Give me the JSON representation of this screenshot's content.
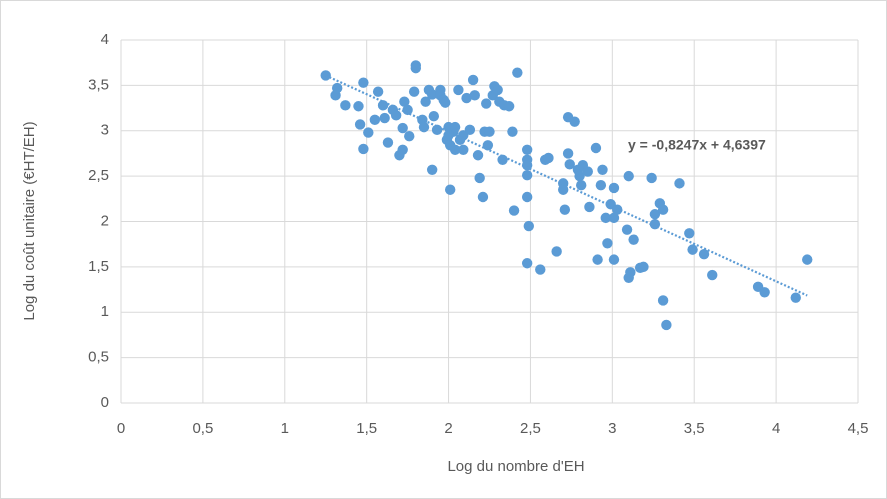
{
  "chart_data": {
    "type": "scatter",
    "xlabel": "Log du nombre d'EH",
    "ylabel": "Log du coût unitaire (€HT/EH)",
    "color": "#5b9bd5",
    "grid": true,
    "xlim": [
      0,
      4.5
    ],
    "ylim": [
      0,
      4
    ],
    "xticks": [
      0,
      {
        "value": 0.5,
        "label": "0,5"
      },
      1,
      {
        "value": 1.5,
        "label": "1,5"
      },
      2,
      {
        "value": 2.5,
        "label": "2,5"
      },
      3,
      {
        "value": 3.5,
        "label": "3,5"
      },
      4,
      {
        "value": 4.5,
        "label": "4,5"
      }
    ],
    "yticks": [
      0,
      {
        "value": 0.5,
        "label": "0,5"
      },
      1,
      {
        "value": 1.5,
        "label": "1,5"
      },
      2,
      {
        "value": 2.5,
        "label": "2,5"
      },
      3,
      {
        "value": 3.5,
        "label": "3,5"
      },
      4
    ],
    "trendline": {
      "label": "y = -0,8247x + 4,6397",
      "slope": -0.8247,
      "intercept": 4.6397,
      "xrange": [
        1.25,
        4.19
      ]
    },
    "x": [
      1.25,
      1.31,
      1.32,
      1.37,
      1.45,
      1.46,
      1.48,
      1.48,
      1.51,
      1.55,
      1.57,
      1.6,
      1.61,
      1.63,
      1.66,
      1.68,
      1.7,
      1.72,
      1.73,
      1.72,
      1.75,
      1.76,
      1.79,
      1.8,
      1.8,
      1.84,
      1.85,
      1.86,
      1.88,
      1.9,
      1.9,
      1.91,
      1.93,
      1.95,
      1.95,
      1.97,
      1.98,
      1.99,
      2.0,
      2.01,
      2.01,
      2.03,
      2.04,
      2.06,
      2.07,
      2.09,
      2.11,
      2.13,
      2.15,
      2.16,
      2.18,
      2.19,
      2.21,
      2.22,
      2.23,
      2.24,
      2.25,
      2.27,
      2.28,
      2.3,
      2.31,
      2.33,
      2.34,
      2.37,
      2.39,
      2.4,
      2.42,
      2.48,
      2.48,
      2.48,
      2.48,
      2.48,
      2.49,
      2.48,
      2.56,
      2.59,
      2.61,
      2.66,
      2.7,
      2.7,
      2.71,
      2.73,
      2.73,
      2.74,
      2.77,
      2.79,
      2.8,
      2.81,
      2.82,
      2.85,
      2.86,
      2.9,
      2.91,
      2.93,
      2.94,
      2.96,
      2.97,
      2.99,
      3.01,
      3.01,
      3.01,
      3.03,
      3.09,
      3.1,
      3.1,
      3.11,
      3.13,
      3.17,
      3.19,
      3.24,
      3.26,
      3.26,
      3.29,
      3.31,
      3.31,
      3.33,
      3.41,
      3.47,
      3.49,
      3.56,
      3.61,
      3.89,
      3.93,
      4.12,
      4.19,
      2.0,
      2.09,
      2.04
    ],
    "values": [
      3.61,
      3.39,
      3.47,
      3.28,
      3.27,
      3.07,
      3.53,
      2.8,
      2.98,
      3.12,
      3.43,
      3.28,
      3.14,
      2.87,
      3.23,
      3.17,
      2.73,
      2.79,
      3.32,
      3.03,
      3.23,
      2.94,
      3.43,
      3.72,
      3.69,
      3.12,
      3.04,
      3.32,
      3.45,
      3.4,
      2.57,
      3.16,
      3.01,
      3.39,
      3.45,
      3.34,
      3.31,
      2.9,
      3.04,
      2.35,
      2.84,
      2.99,
      3.04,
      3.45,
      2.9,
      2.95,
      3.36,
      3.01,
      3.56,
      3.39,
      2.73,
      2.48,
      2.27,
      2.99,
      3.3,
      2.84,
      2.99,
      3.39,
      3.49,
      3.45,
      3.32,
      2.68,
      3.28,
      3.27,
      2.99,
      2.12,
      3.64,
      2.79,
      2.68,
      2.62,
      2.51,
      2.27,
      1.95,
      1.54,
      1.47,
      2.68,
      2.7,
      1.67,
      2.35,
      2.42,
      2.13,
      3.15,
      2.75,
      2.63,
      3.1,
      2.57,
      2.5,
      2.4,
      2.62,
      2.55,
      2.16,
      2.81,
      1.58,
      2.4,
      2.57,
      2.04,
      1.76,
      2.19,
      1.58,
      2.37,
      2.04,
      2.13,
      1.91,
      2.5,
      1.38,
      1.44,
      1.8,
      1.49,
      1.5,
      2.48,
      1.97,
      2.08,
      2.2,
      2.13,
      1.13,
      0.86,
      2.42,
      1.87,
      1.69,
      1.64,
      1.41,
      1.28,
      1.22,
      1.16,
      1.58,
      2.95,
      2.79,
      2.79
    ]
  }
}
